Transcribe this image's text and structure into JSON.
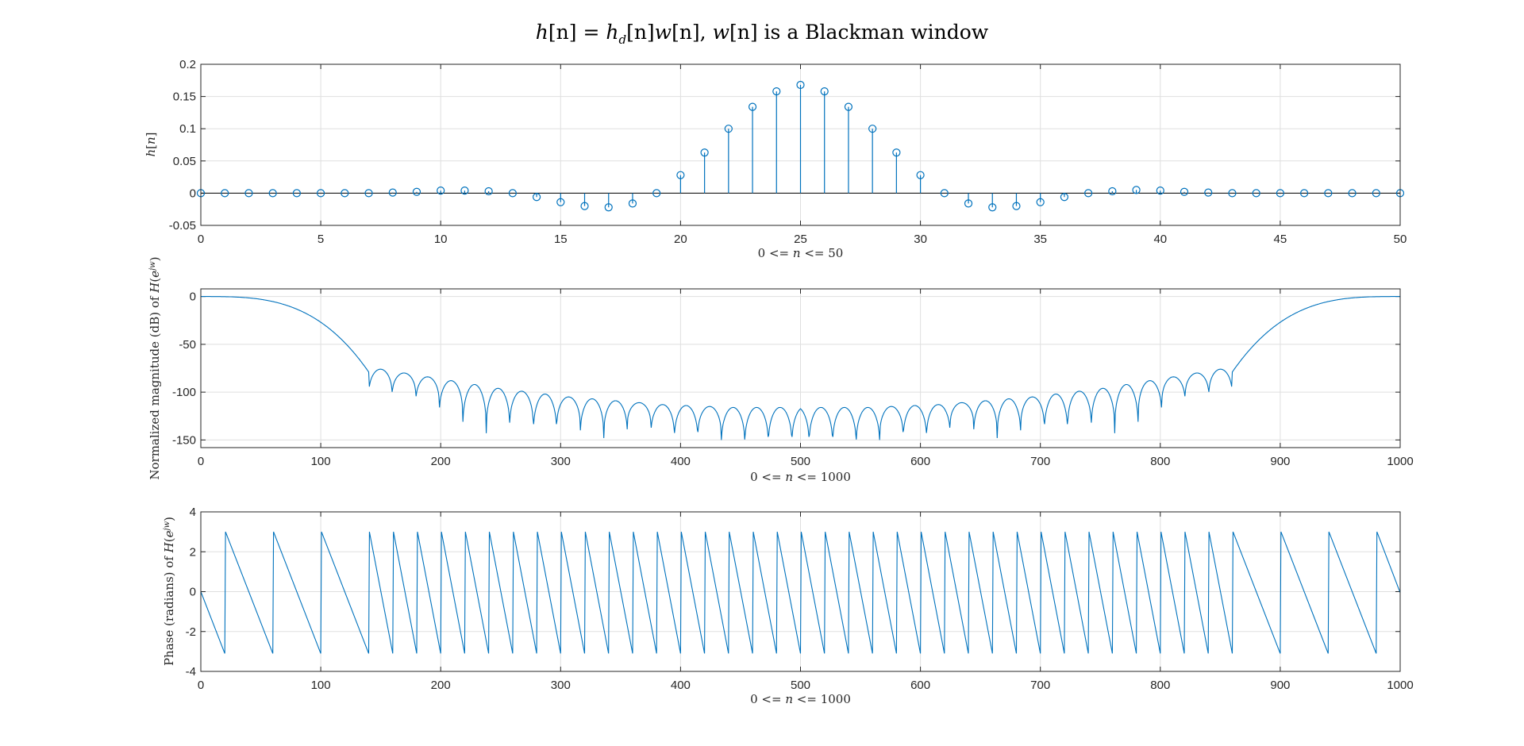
{
  "figure": {
    "title_parts": [
      "h",
      "[n] = ",
      "h",
      "d",
      "[n]",
      "w",
      "[n], ",
      "w",
      "[n] is a Blackman window"
    ]
  },
  "colors": {
    "series": "#0072BD",
    "grid": "#dfdfdf",
    "axis": "#262626",
    "background": "#ffffff"
  },
  "chart_data": [
    {
      "type": "stem",
      "ylabel_parts": [
        "h",
        "[",
        "n",
        "]"
      ],
      "xlabel_parts": [
        "0 <= ",
        "n",
        " <= 50"
      ],
      "xlim": [
        0,
        50
      ],
      "ylim": [
        -0.05,
        0.2
      ],
      "xticks": [
        0,
        5,
        10,
        15,
        20,
        25,
        30,
        35,
        40,
        45,
        50
      ],
      "yticks": [
        -0.05,
        0,
        0.05,
        0.1,
        0.15,
        0.2
      ],
      "yticklabels": [
        "-0.05",
        "0",
        "0.05",
        "0.1",
        "0.15",
        "0.2"
      ],
      "grid": true,
      "x": [
        0,
        1,
        2,
        3,
        4,
        5,
        6,
        7,
        8,
        9,
        10,
        11,
        12,
        13,
        14,
        15,
        16,
        17,
        18,
        19,
        20,
        21,
        22,
        23,
        24,
        25,
        26,
        27,
        28,
        29,
        30,
        31,
        32,
        33,
        34,
        35,
        36,
        37,
        38,
        39,
        40,
        41,
        42,
        43,
        44,
        45,
        46,
        47,
        48,
        49,
        50
      ],
      "y": [
        0,
        0,
        0,
        0,
        0,
        0,
        0,
        0,
        0.001,
        0.002,
        0.004,
        0.004,
        0.003,
        0,
        -0.006,
        -0.014,
        -0.02,
        -0.022,
        -0.016,
        0,
        0.028,
        0.063,
        0.1,
        0.134,
        0.158,
        0.168,
        0.158,
        0.134,
        0.1,
        0.063,
        0.028,
        0,
        -0.016,
        -0.022,
        -0.02,
        -0.014,
        -0.006,
        0,
        0.003,
        0.005,
        0.004,
        0.002,
        0.001,
        0,
        0,
        0,
        0,
        0,
        0,
        0,
        0
      ]
    },
    {
      "type": "line",
      "ylabel_parts": [
        "Normalized magnitude (dB) of ",
        "H",
        "(",
        "e",
        "jw",
        ")"
      ],
      "xlabel_parts": [
        "0 <= ",
        "n",
        " <= 1000"
      ],
      "xlim": [
        0,
        1000
      ],
      "ylim": [
        -158,
        8
      ],
      "xticks": [
        0,
        100,
        200,
        300,
        400,
        500,
        600,
        700,
        800,
        900,
        1000
      ],
      "yticks": [
        -150,
        -100,
        -50,
        0
      ],
      "grid": true,
      "description_model": {
        "passband_db": 0,
        "transition_end_x": 140,
        "shoulder_db": -79,
        "lobe_period": 19.6,
        "lobe_peaks_db": [
          -76,
          -80,
          -84,
          -88,
          -92,
          -96,
          -99,
          -102,
          -105,
          -107,
          -109,
          -111,
          -113,
          -114,
          -115,
          -116
        ],
        "null_depths_db": [
          -107,
          -106,
          -115,
          -128,
          -143,
          -143,
          -140,
          -150,
          -140,
          -150,
          -148,
          -137,
          -150,
          -155,
          -150,
          -160
        ]
      }
    },
    {
      "type": "line",
      "ylabel_parts": [
        "Phase (radians) of ",
        "H",
        "(",
        "e",
        "jw",
        ")"
      ],
      "xlabel_parts": [
        "0 <= ",
        "n",
        " <= 1000"
      ],
      "xlim": [
        0,
        1000
      ],
      "ylim": [
        -4,
        4
      ],
      "xticks": [
        0,
        100,
        200,
        300,
        400,
        500,
        600,
        700,
        800,
        900,
        1000
      ],
      "yticks": [
        -4,
        -2,
        0,
        2,
        4
      ],
      "grid": true,
      "wraps_x": [
        20,
        60,
        100,
        140,
        160,
        180,
        200,
        220,
        240,
        260,
        280,
        300,
        320,
        340,
        360,
        380,
        400,
        420,
        440,
        460,
        480,
        500,
        520,
        540,
        560,
        580,
        600,
        620,
        640,
        660,
        680,
        700,
        720,
        740,
        760,
        780,
        800,
        820,
        840,
        860,
        900,
        940,
        980
      ],
      "phase_range": [
        -3.1,
        3.0
      ]
    }
  ]
}
